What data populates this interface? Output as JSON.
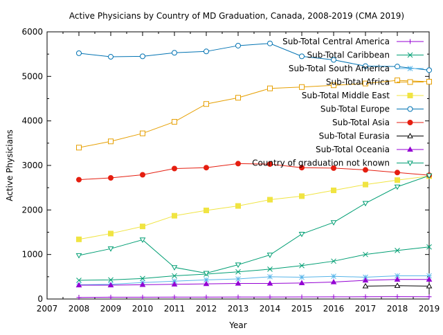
{
  "chart_data": {
    "type": "line",
    "title": "Active Physicians by Country of MD Graduation, Canada, 2008-2019 (CMA 2019)",
    "xlabel": "Year",
    "ylabel": "Active Physicians",
    "xlim": [
      2007,
      2019
    ],
    "ylim": [
      0,
      6000
    ],
    "x_ticks": [
      "2007",
      "2008",
      "2009",
      "2010",
      "2011",
      "2012",
      "2013",
      "2014",
      "2015",
      "2016",
      "2017",
      "2018",
      "2019"
    ],
    "y_ticks": [
      "0",
      "1000",
      "2000",
      "3000",
      "4000",
      "5000",
      "6000"
    ],
    "grid": false,
    "legend_position": "top-right",
    "x": [
      2008,
      2009,
      2010,
      2011,
      2012,
      2013,
      2014,
      2015,
      2016,
      2017,
      2018,
      2019
    ],
    "series": [
      {
        "name": "Sub-Total Central America",
        "color": "#9400d3",
        "marker": "plus",
        "values": [
          35,
          40,
          40,
          42,
          43,
          45,
          45,
          47,
          48,
          50,
          52,
          50
        ]
      },
      {
        "name": "Sub-Total Caribbean",
        "color": "#009e73",
        "marker": "cross",
        "values": [
          420,
          430,
          460,
          520,
          560,
          610,
          670,
          750,
          850,
          1000,
          1090,
          1170
        ]
      },
      {
        "name": "Sub-Total South America",
        "color": "#56b4e9",
        "marker": "star",
        "values": [
          320,
          330,
          370,
          400,
          430,
          450,
          500,
          490,
          510,
          490,
          520,
          520
        ]
      },
      {
        "name": "Sub-Total Africa",
        "color": "#e69f00",
        "marker": "square",
        "values": [
          3400,
          3540,
          3720,
          3980,
          4380,
          4520,
          4730,
          4760,
          4800,
          4840,
          4910,
          4880
        ]
      },
      {
        "name": "Sub-Total Middle East",
        "color": "#f0e442",
        "marker": "square-filled",
        "values": [
          1340,
          1470,
          1630,
          1870,
          1990,
          2090,
          2230,
          2310,
          2440,
          2570,
          2670,
          2760
        ]
      },
      {
        "name": "Sub-Total Europe",
        "color": "#0072b2",
        "marker": "circle",
        "values": [
          5520,
          5440,
          5450,
          5530,
          5560,
          5690,
          5740,
          5450,
          5370,
          5230,
          5220,
          5140
        ]
      },
      {
        "name": "Sub-Total Asia",
        "color": "#e51e10",
        "marker": "circle-filled",
        "values": [
          2680,
          2720,
          2790,
          2930,
          2950,
          3040,
          3030,
          2950,
          2940,
          2900,
          2840,
          2780
        ]
      },
      {
        "name": "Sub-Total Eurasia",
        "color": "#000000",
        "marker": "triangle",
        "x": [
          2017,
          2018,
          2019
        ],
        "values": [
          290,
          300,
          290
        ]
      },
      {
        "name": "Sub-Total Oceania",
        "color": "#9400d3",
        "marker": "triangle-filled",
        "values": [
          310,
          310,
          320,
          330,
          340,
          350,
          350,
          360,
          380,
          420,
          440,
          440
        ]
      },
      {
        "name": "Country of graduation not known",
        "color": "#009e73",
        "marker": "triangle-down",
        "values": [
          980,
          1130,
          1330,
          710,
          580,
          770,
          990,
          1460,
          1720,
          2150,
          2520,
          2770
        ]
      }
    ]
  }
}
